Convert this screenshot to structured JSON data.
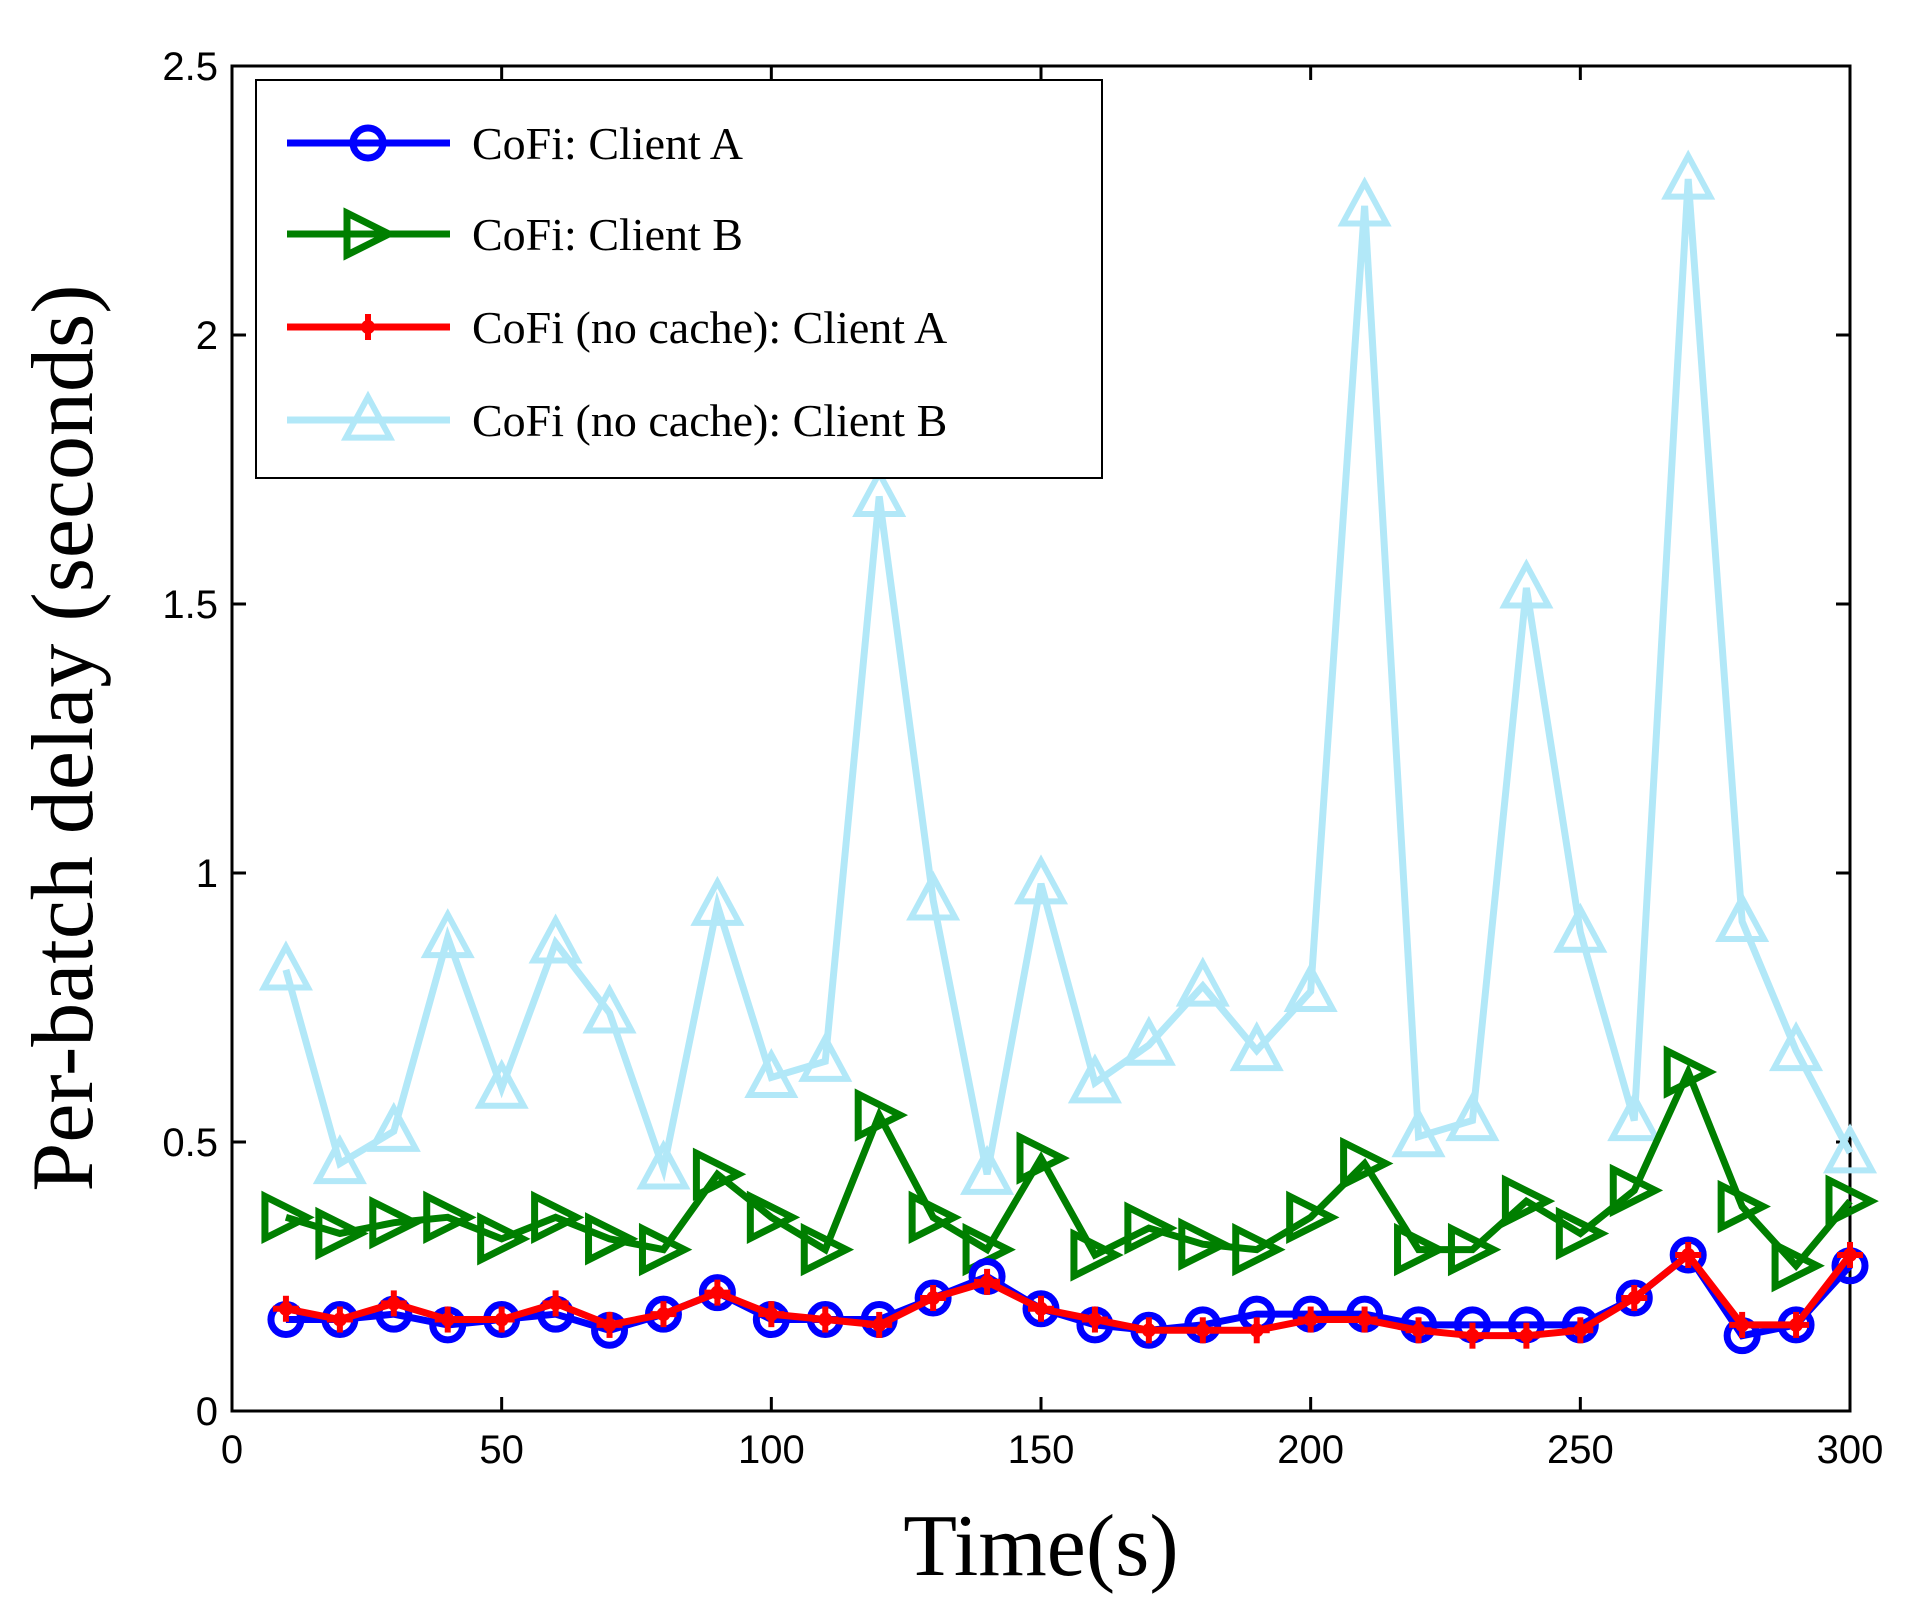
{
  "chart_data": {
    "type": "line",
    "title": "",
    "xlabel": "Time(s)",
    "ylabel": "Per-batch delay (seconds)",
    "xlim": [
      0,
      300
    ],
    "ylim": [
      0,
      2.5
    ],
    "xticks": [
      0,
      50,
      100,
      150,
      200,
      250,
      300
    ],
    "xtick_labels": [
      "0",
      "50",
      "100",
      "150",
      "200",
      "250",
      "300"
    ],
    "yticks": [
      0,
      0.5,
      1,
      1.5,
      2,
      2.5
    ],
    "ytick_labels": [
      "0",
      "0.5",
      "1",
      "1.5",
      "2",
      "2.5"
    ],
    "grid": false,
    "legend_position": "top-left",
    "x": [
      10,
      20,
      30,
      40,
      50,
      60,
      70,
      80,
      90,
      100,
      110,
      120,
      130,
      140,
      150,
      160,
      170,
      180,
      190,
      200,
      210,
      220,
      230,
      240,
      250,
      260,
      270,
      280,
      290,
      300
    ],
    "series": [
      {
        "name": "CoFi: Client A",
        "color": "#0000ff",
        "marker": "circle",
        "values": [
          0.17,
          0.17,
          0.18,
          0.16,
          0.17,
          0.18,
          0.15,
          0.18,
          0.22,
          0.17,
          0.17,
          0.17,
          0.21,
          0.25,
          0.19,
          0.16,
          0.15,
          0.16,
          0.18,
          0.18,
          0.18,
          0.16,
          0.16,
          0.16,
          0.16,
          0.21,
          0.29,
          0.14,
          0.16,
          0.27
        ]
      },
      {
        "name": "CoFi: Client B",
        "color": "#007f00",
        "marker": "triangle-right",
        "values": [
          0.36,
          0.33,
          0.35,
          0.36,
          0.32,
          0.36,
          0.32,
          0.3,
          0.44,
          0.36,
          0.3,
          0.55,
          0.36,
          0.3,
          0.47,
          0.29,
          0.34,
          0.31,
          0.3,
          0.36,
          0.46,
          0.3,
          0.3,
          0.39,
          0.33,
          0.41,
          0.63,
          0.38,
          0.27,
          0.39
        ]
      },
      {
        "name": "CoFi (no cache): Client A",
        "color": "#ff0000",
        "marker": "plus-dot",
        "values": [
          0.19,
          0.17,
          0.2,
          0.17,
          0.17,
          0.2,
          0.16,
          0.18,
          0.22,
          0.18,
          0.17,
          0.16,
          0.21,
          0.24,
          0.19,
          0.17,
          0.15,
          0.15,
          0.15,
          0.17,
          0.17,
          0.15,
          0.14,
          0.14,
          0.15,
          0.21,
          0.29,
          0.16,
          0.16,
          0.29
        ]
      },
      {
        "name": "CoFi (no cache): Client B",
        "color": "#b2e8f8",
        "marker": "triangle-up",
        "values": [
          0.82,
          0.46,
          0.52,
          0.88,
          0.6,
          0.87,
          0.74,
          0.45,
          0.94,
          0.62,
          0.65,
          1.7,
          0.95,
          0.44,
          0.98,
          0.61,
          0.68,
          0.79,
          0.67,
          0.78,
          2.24,
          0.51,
          0.54,
          1.53,
          0.89,
          0.54,
          2.29,
          0.91,
          0.67,
          0.48
        ]
      }
    ]
  }
}
